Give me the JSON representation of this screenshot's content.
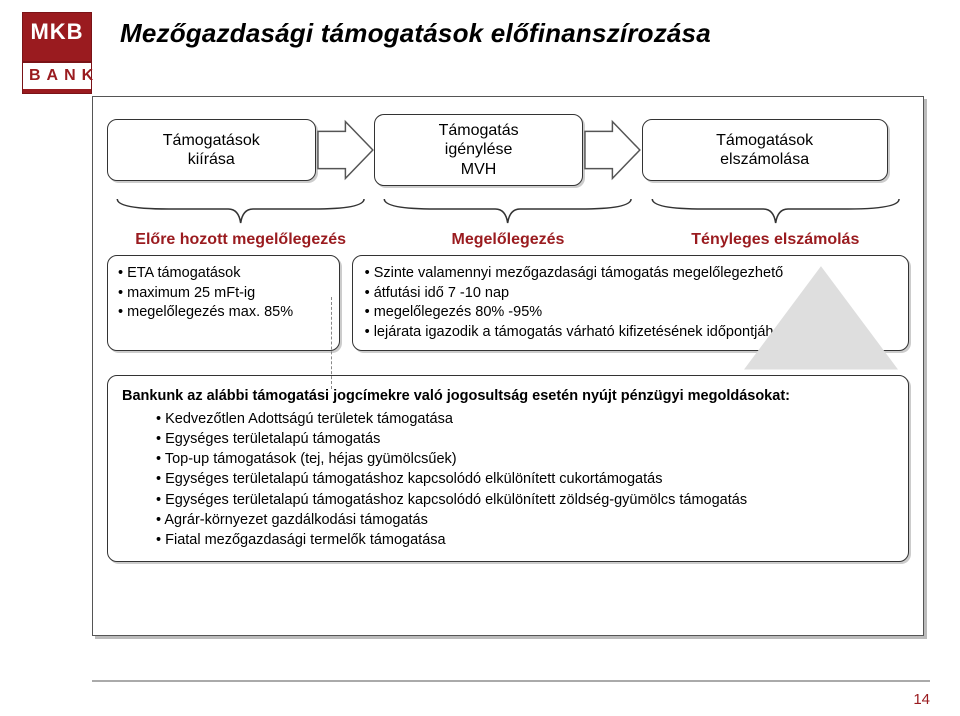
{
  "logo": {
    "top": "MKB",
    "bottom": "BANK"
  },
  "title": "Mezőgazdasági támogatások előfinanszírozása",
  "process": {
    "steps": [
      {
        "label": "Támogatások\nkiírása"
      },
      {
        "label": "Támogatás\nigénylése\nMVH"
      },
      {
        "label": "Támogatások\nelszámolása"
      }
    ],
    "arrow_fill": "#ffffff",
    "arrow_stroke": "#555555"
  },
  "phase_labels": [
    "Előre hozott megelőlegezés",
    "Megelőlegezés",
    "Tényleges elszámolás"
  ],
  "detail_left": [
    "ETA támogatások",
    "maximum 25 mFt-ig",
    "megelőlegezés max. 85%"
  ],
  "detail_mid": [
    "Szinte valamennyi mezőgazdasági támogatás megelőlegezhető",
    "átfutási idő 7 -10 nap",
    "megelőlegezés 80% -95%",
    "lejárata igazodik a támogatás várható kifizetésének időpontjához"
  ],
  "bottom": {
    "lead": "Bankunk az alábbi támogatási jogcímekre való jogosultság esetén nyújt pénzügyi megoldásokat:",
    "items": [
      "Kedvezőtlen Adottságú területek támogatása",
      "Egységes területalapú támogatás",
      "Top-up támogatások (tej, héjas gyümölcsűek)",
      "Egységes területalapú támogatáshoz kapcsolódó elkülönített cukortámogatás",
      "Egységes területalapú támogatáshoz kapcsolódó elkülönített zöldség-gyümölcs támogatás",
      "Agrár-környezet gazdálkodási támogatás",
      "Fiatal mezőgazdasági termelők támogatása"
    ]
  },
  "colors": {
    "brand": "#9a1b1f",
    "text": "#000000",
    "box_border": "#333333",
    "shadow": "#cccccc",
    "label_red": "#9a1b1f",
    "triangle_fill": "#dedede",
    "triangle_stroke": "#dedede"
  },
  "page_number": "14"
}
